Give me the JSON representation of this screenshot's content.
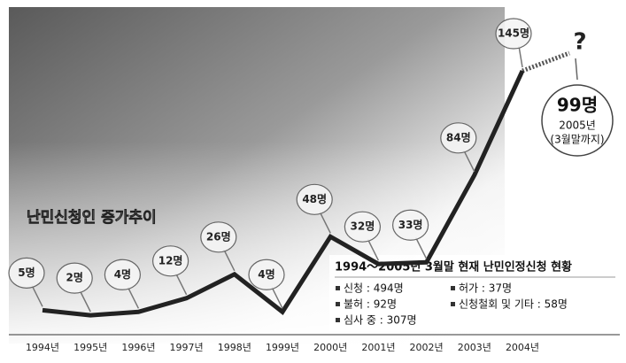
{
  "chart_data": {
    "type": "line",
    "title": "난민신청인 증가추이",
    "categories": [
      "1994년",
      "1995년",
      "1996년",
      "1997년",
      "1998년",
      "1999년",
      "2000년",
      "2001년",
      "2002년",
      "2003년",
      "2004년"
    ],
    "values": [
      5,
      2,
      4,
      12,
      26,
      4,
      48,
      32,
      33,
      84,
      145
    ],
    "value_labels": [
      "5명",
      "2명",
      "4명",
      "12명",
      "26명",
      "4명",
      "48명",
      "32명",
      "33명",
      "84명",
      "145명"
    ],
    "color": "#222222",
    "projection": {
      "mark": "?",
      "label": "99명",
      "year": "2005년",
      "note": "(3월말까지)"
    },
    "summary": {
      "title": "1994～2005년 3월말 현재 난민인정신청 현황",
      "items": [
        "신청 : 494명",
        "허가 : 37명",
        "불허 : 92명",
        "신청철회 및 기타 : 58명",
        "심사 중 : 307명"
      ]
    }
  }
}
